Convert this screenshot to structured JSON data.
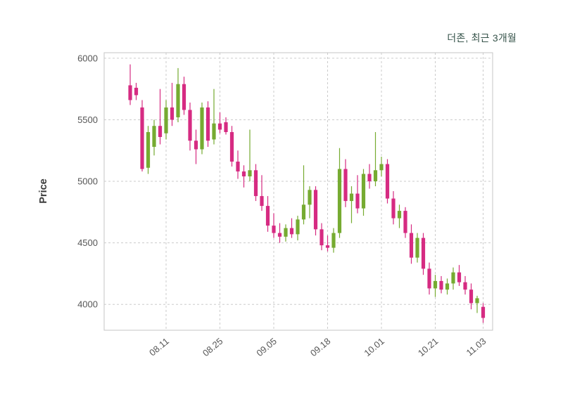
{
  "title": "더존, 최근 3개월",
  "chart_data": {
    "type": "candlestick",
    "title": "더존, 최근 3개월",
    "xlabel": "",
    "ylabel": "Price",
    "ylim": [
      3790,
      6045
    ],
    "yticks": [
      4000,
      4500,
      5000,
      5500,
      6000
    ],
    "xtick_labels": [
      "08.11",
      "08.25",
      "09.05",
      "09.18",
      "10.01",
      "10.21",
      "11.03"
    ],
    "xtick_indices": [
      6,
      15,
      24,
      33,
      42,
      51,
      59
    ],
    "grid": true,
    "legend": "none",
    "colors": {
      "up": "#76ab31",
      "down": "#d62b82"
    },
    "candles_format": [
      "open",
      "high",
      "low",
      "close"
    ],
    "candles": [
      [
        5780,
        5950,
        5620,
        5660
      ],
      [
        5760,
        5800,
        5660,
        5700
      ],
      [
        5600,
        5660,
        5080,
        5100
      ],
      [
        5110,
        5450,
        5060,
        5400
      ],
      [
        5280,
        5500,
        5210,
        5450
      ],
      [
        5450,
        5750,
        5300,
        5360
      ],
      [
        5390,
        5660,
        5340,
        5600
      ],
      [
        5600,
        5800,
        5450,
        5500
      ],
      [
        5520,
        5920,
        5480,
        5790
      ],
      [
        5790,
        5850,
        5540,
        5580
      ],
      [
        5580,
        5640,
        5250,
        5330
      ],
      [
        5330,
        5420,
        5140,
        5260
      ],
      [
        5260,
        5640,
        5220,
        5600
      ],
      [
        5600,
        5650,
        5280,
        5330
      ],
      [
        5340,
        5750,
        5300,
        5470
      ],
      [
        5470,
        5560,
        5390,
        5420
      ],
      [
        5480,
        5520,
        5380,
        5400
      ],
      [
        5400,
        5450,
        5120,
        5160
      ],
      [
        5160,
        5250,
        5020,
        5080
      ],
      [
        5080,
        5130,
        4950,
        5040
      ],
      [
        5040,
        5420,
        5000,
        5090
      ],
      [
        5090,
        5140,
        4840,
        4880
      ],
      [
        4880,
        5050,
        4760,
        4800
      ],
      [
        4800,
        4880,
        4590,
        4640
      ],
      [
        4640,
        4740,
        4540,
        4580
      ],
      [
        4580,
        4660,
        4500,
        4550
      ],
      [
        4550,
        4650,
        4510,
        4620
      ],
      [
        4620,
        4700,
        4540,
        4570
      ],
      [
        4570,
        4720,
        4520,
        4690
      ],
      [
        4690,
        5130,
        4650,
        4810
      ],
      [
        4810,
        4960,
        4700,
        4930
      ],
      [
        4930,
        4960,
        4560,
        4610
      ],
      [
        4610,
        4660,
        4440,
        4480
      ],
      [
        4480,
        4560,
        4430,
        4460
      ],
      [
        4460,
        4620,
        4420,
        4580
      ],
      [
        4580,
        5270,
        4540,
        5100
      ],
      [
        5100,
        5180,
        4790,
        4840
      ],
      [
        4840,
        4960,
        4660,
        4900
      ],
      [
        4900,
        5050,
        4740,
        4780
      ],
      [
        4780,
        5100,
        4720,
        5060
      ],
      [
        5060,
        5140,
        4940,
        5000
      ],
      [
        5000,
        5400,
        4960,
        5090
      ],
      [
        5090,
        5200,
        5040,
        5140
      ],
      [
        5140,
        5180,
        4820,
        4860
      ],
      [
        4860,
        4920,
        4650,
        4700
      ],
      [
        4700,
        4810,
        4620,
        4760
      ],
      [
        4760,
        4790,
        4540,
        4580
      ],
      [
        4580,
        4650,
        4330,
        4380
      ],
      [
        4380,
        4580,
        4340,
        4540
      ],
      [
        4540,
        4580,
        4240,
        4290
      ],
      [
        4290,
        4340,
        4080,
        4130
      ],
      [
        4130,
        4240,
        4060,
        4190
      ],
      [
        4190,
        4230,
        4090,
        4120
      ],
      [
        4120,
        4210,
        4080,
        4170
      ],
      [
        4170,
        4300,
        4120,
        4260
      ],
      [
        4260,
        4320,
        4150,
        4180
      ],
      [
        4180,
        4230,
        4080,
        4120
      ],
      [
        4120,
        4170,
        3960,
        4010
      ],
      [
        4010,
        4070,
        3930,
        4050
      ],
      [
        3980,
        4010,
        3850,
        3890
      ]
    ]
  }
}
